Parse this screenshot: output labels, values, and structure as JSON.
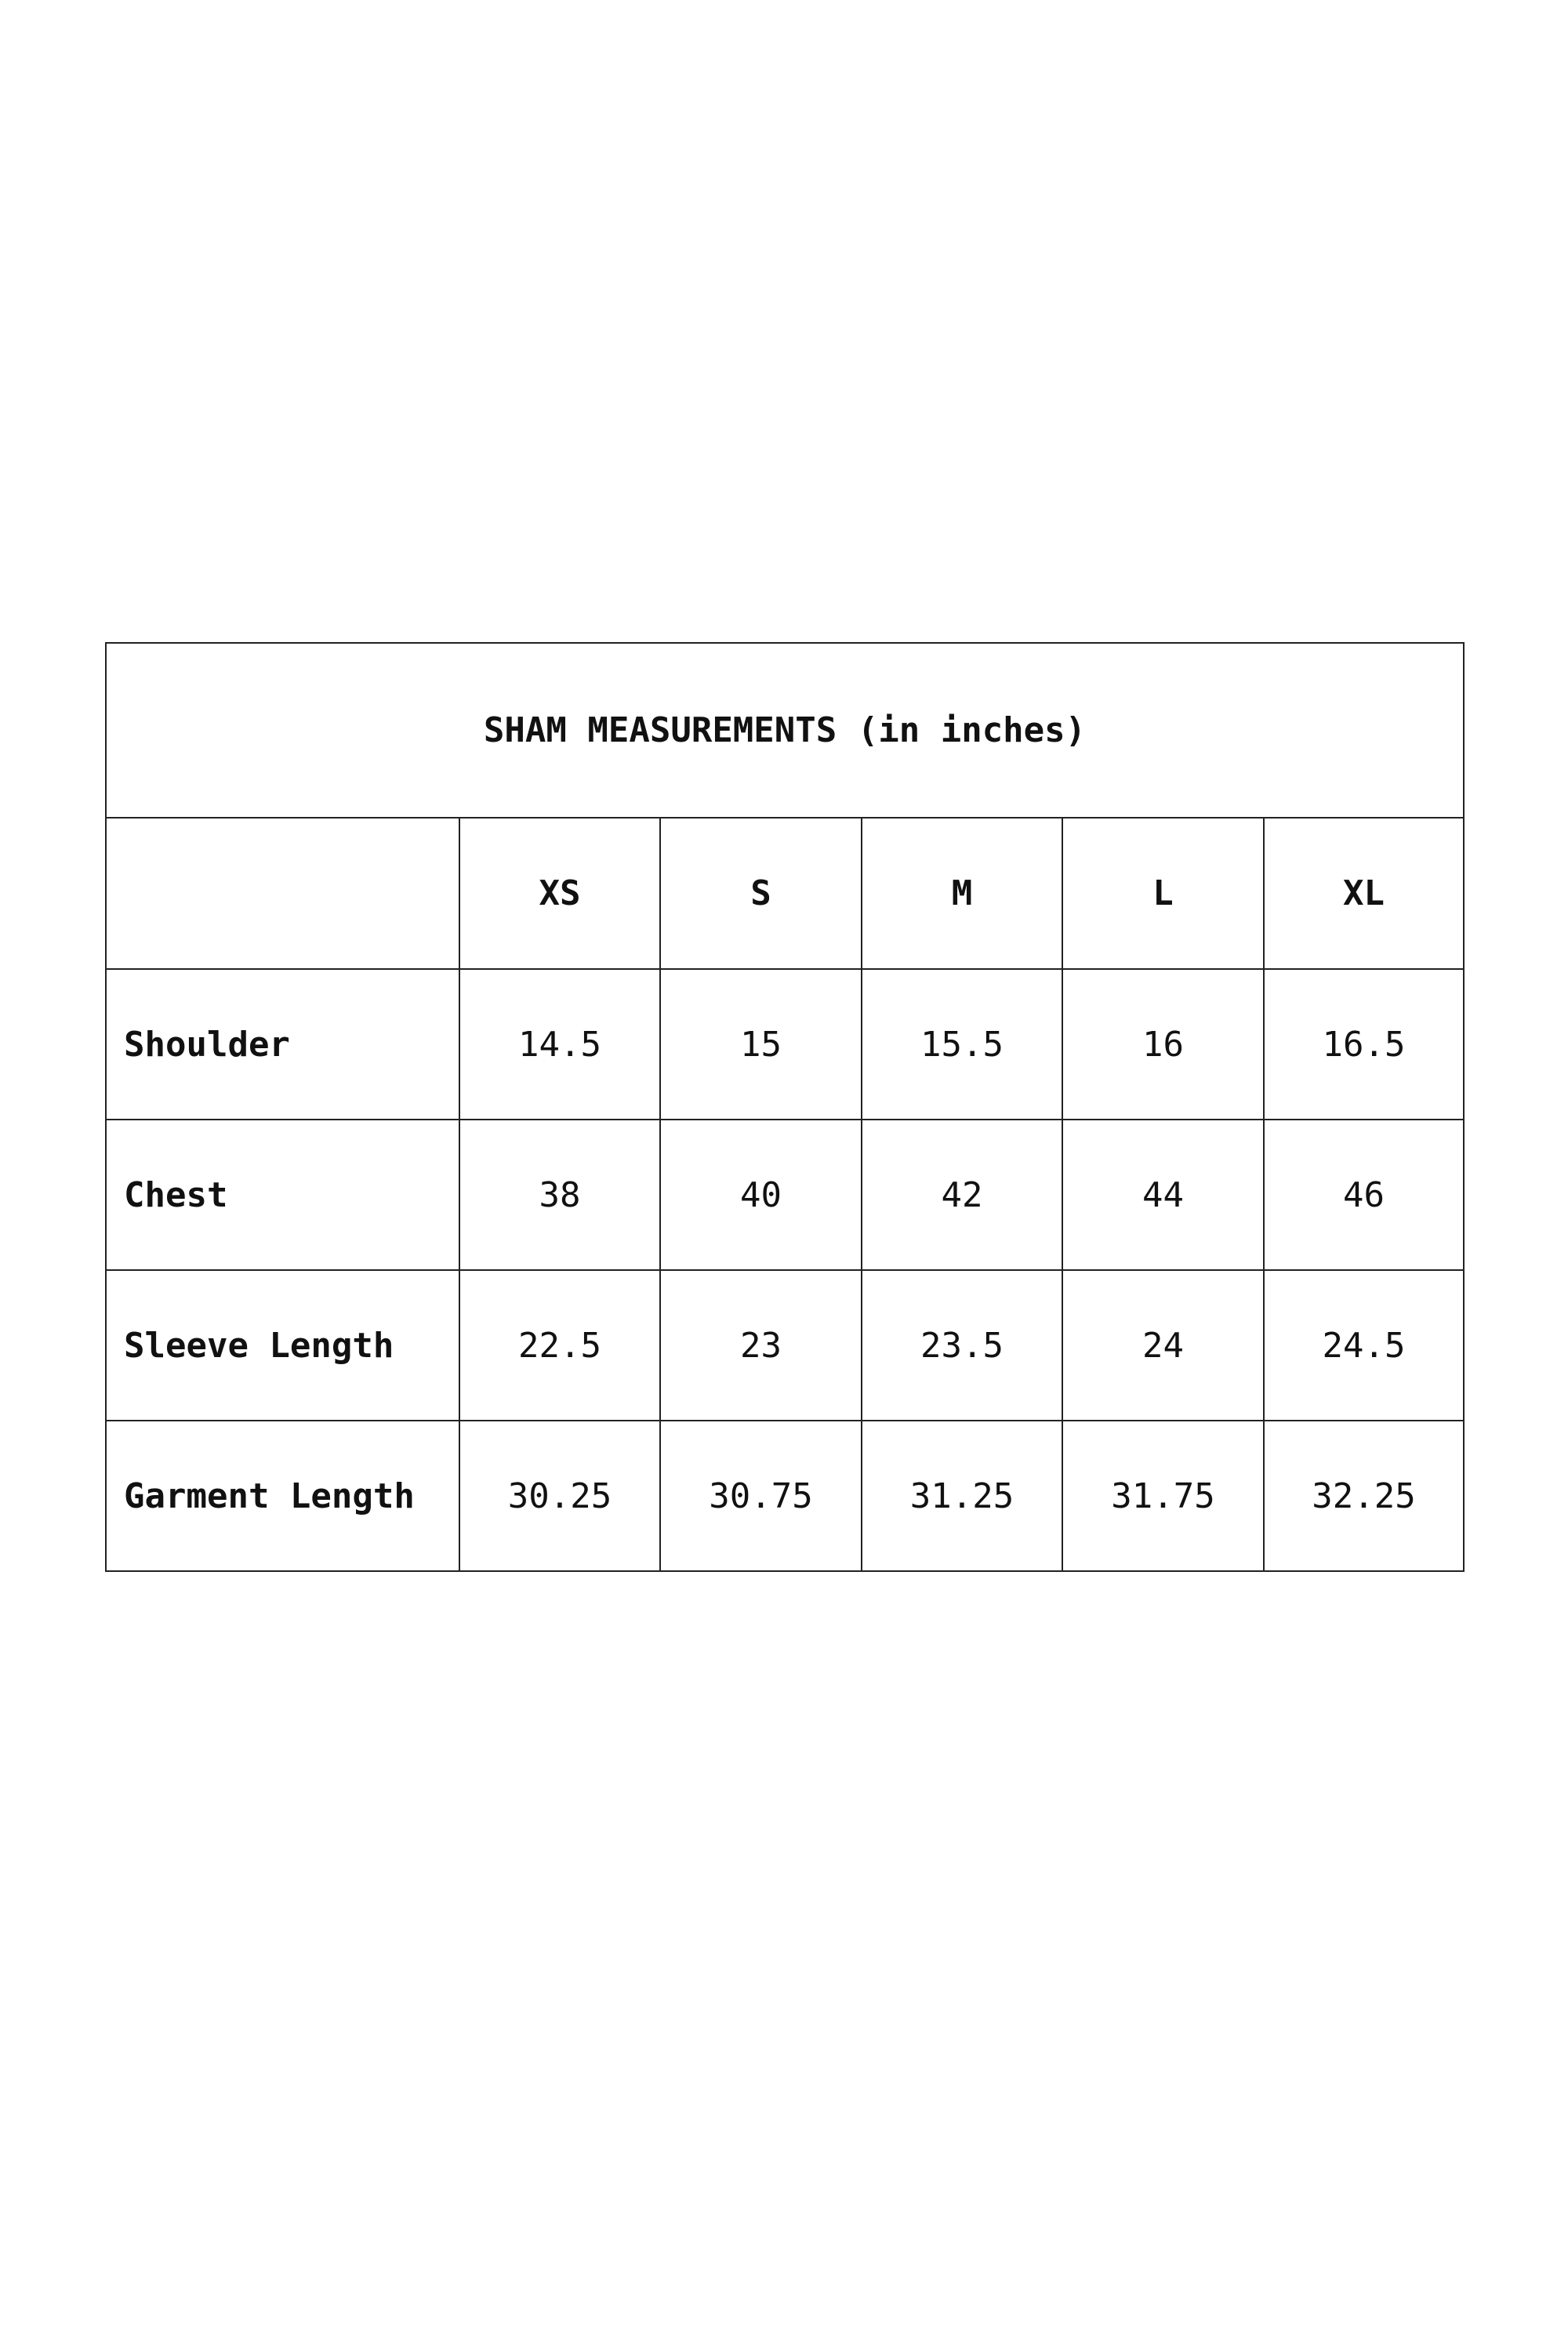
{
  "title": "SHAM MEASUREMENTS (in inches)",
  "sizes": [
    "XS",
    "S",
    "M",
    "L",
    "XL"
  ],
  "rows": [
    {
      "label": "Shoulder",
      "values": [
        "14.5",
        "15",
        "15.5",
        "16",
        "16.5"
      ]
    },
    {
      "label": "Chest",
      "values": [
        "38",
        "40",
        "42",
        "44",
        "46"
      ]
    },
    {
      "label": "Sleeve Length",
      "values": [
        "22.5",
        "23",
        "23.5",
        "24",
        "24.5"
      ]
    },
    {
      "label": "Garment Length",
      "values": [
        "30.25",
        "30.75",
        "31.25",
        "31.75",
        "32.25"
      ]
    }
  ]
}
